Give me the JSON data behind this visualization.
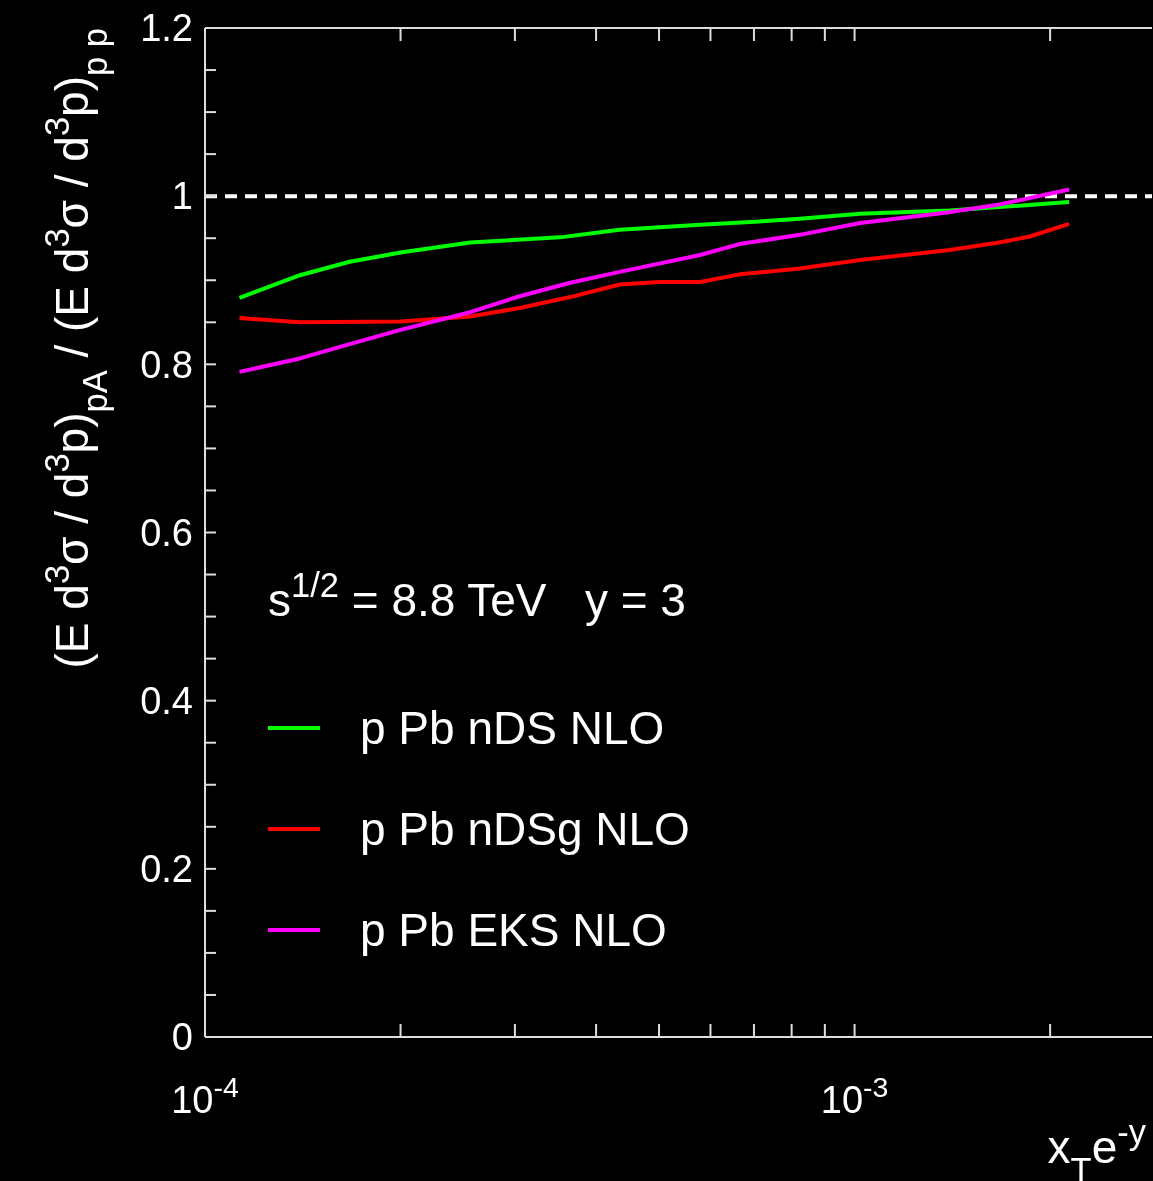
{
  "chart_data": {
    "type": "line",
    "xlabel": "x$_{T}$e$^{-y}$",
    "ylabel": "(E d$^{3}$σ / d$^{3}$p)$_{pA}$ / (E d$^{3}$σ / d$^{3}$p)$_{p p}$",
    "log": "x",
    "xlim": [
      0.0001,
      0.00287
    ],
    "ylim": [
      0,
      1.2
    ],
    "xticks": [
      {
        "value": 0.0001,
        "label": "10$^{-4}$"
      },
      {
        "value": 0.0002,
        "label": null
      },
      {
        "value": 0.0003,
        "label": null
      },
      {
        "value": 0.0004,
        "label": null
      },
      {
        "value": 0.0005,
        "label": null
      },
      {
        "value": 0.0006,
        "label": null
      },
      {
        "value": 0.0007,
        "label": null
      },
      {
        "value": 0.0008,
        "label": null
      },
      {
        "value": 0.0009,
        "label": null
      },
      {
        "value": 0.001,
        "label": "10$^{-3}$"
      },
      {
        "value": 0.002,
        "label": null
      }
    ],
    "yticks": [
      0,
      {
        "value": 0.05,
        "label": null
      },
      {
        "value": 0.1,
        "label": null
      },
      {
        "value": 0.15,
        "label": null
      },
      0.2,
      {
        "value": 0.25,
        "label": null
      },
      {
        "value": 0.3,
        "label": null
      },
      {
        "value": 0.35,
        "label": null
      },
      0.4,
      {
        "value": 0.45,
        "label": null
      },
      {
        "value": 0.5,
        "label": null
      },
      {
        "value": 0.55,
        "label": null
      },
      0.6,
      {
        "value": 0.65,
        "label": null
      },
      {
        "value": 0.7,
        "label": null
      },
      {
        "value": 0.75,
        "label": null
      },
      0.8,
      {
        "value": 0.85,
        "label": null
      },
      {
        "value": 0.9,
        "label": null
      },
      {
        "value": 0.95,
        "label": null
      },
      1,
      {
        "value": 1.05,
        "label": null
      },
      {
        "value": 1.1,
        "label": null
      },
      {
        "value": 1.15,
        "label": null
      },
      1.2
    ],
    "legend": "bottom left",
    "line_style": "solid",
    "ref_lines": [
      {
        "axis": "y",
        "value": 1,
        "color": "#ffffff",
        "line_style": "dashed"
      }
    ],
    "annotations": [
      "s$^{1/2}$ = 8.8 TeV   y = 3"
    ],
    "series": [
      {
        "name": "p Pb nDS NLO",
        "color": "#00ff00",
        "x": [
          0.000113,
          0.00014,
          0.000167,
          0.0002,
          0.000256,
          0.000352,
          0.000435,
          0.000578,
          0.000714,
          0.000823,
          0.00102,
          0.0014,
          0.00167,
          0.00214
        ],
        "values": [
          0.879,
          0.906,
          0.922,
          0.933,
          0.945,
          0.951,
          0.96,
          0.966,
          0.97,
          0.973,
          0.979,
          0.983,
          0.987,
          0.993
        ]
      },
      {
        "name": "p Pb nDSg NLO",
        "color": "#ff0000",
        "x": [
          0.000113,
          0.00014,
          0.0002,
          0.000256,
          0.000305,
          0.000365,
          0.000435,
          0.000501,
          0.000578,
          0.000665,
          0.000823,
          0.00102,
          0.0014,
          0.00167,
          0.00186,
          0.00214
        ],
        "values": [
          0.855,
          0.85,
          0.851,
          0.857,
          0.867,
          0.88,
          0.895,
          0.898,
          0.898,
          0.907,
          0.914,
          0.924,
          0.936,
          0.945,
          0.952,
          0.967
        ]
      },
      {
        "name": "p Pb EKS NLO",
        "color": "#ff00ff",
        "x": [
          0.000113,
          0.00014,
          0.000167,
          0.0002,
          0.000256,
          0.000305,
          0.000365,
          0.000435,
          0.000578,
          0.000665,
          0.000823,
          0.00102,
          0.0014,
          0.00167,
          0.00214
        ],
        "values": [
          0.791,
          0.807,
          0.824,
          0.841,
          0.862,
          0.881,
          0.897,
          0.91,
          0.93,
          0.943,
          0.954,
          0.968,
          0.981,
          0.99,
          1.008
        ]
      }
    ]
  }
}
